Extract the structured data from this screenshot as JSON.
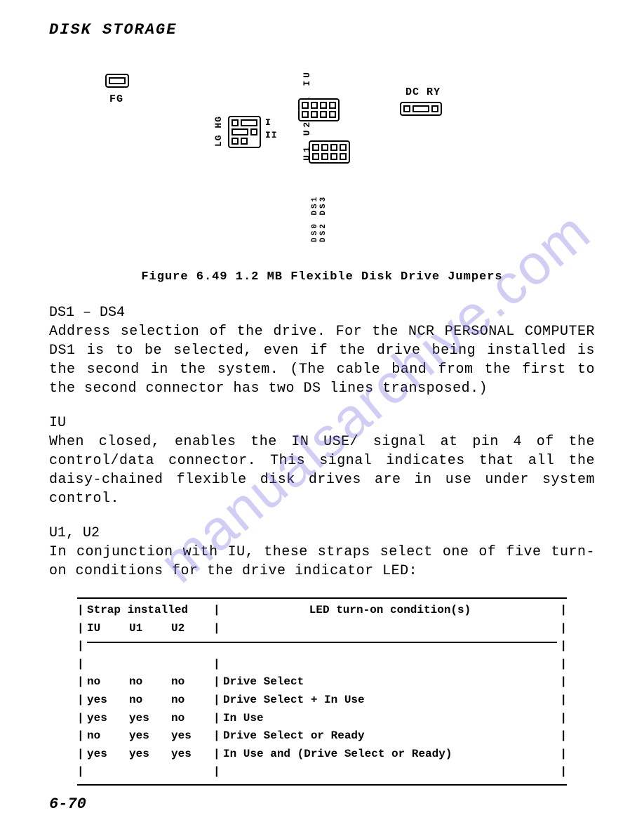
{
  "header": "DISK STORAGE",
  "diagram": {
    "fg_label": "FG",
    "dcry_label": "DC RY",
    "lghg_label": "LG HG",
    "ii_i_top": "I",
    "ii_i_bot": "II",
    "top_labels": "U1 U2 HL IU",
    "ds_labels": "DS0 DS1 DS2 DS3"
  },
  "figure_caption": "Figure 6.49  1.2 MB Flexible Disk Drive Jumpers",
  "sections": [
    {
      "label": "DS1 – DS4",
      "text": "Address selection of the drive. For the NCR PERSONAL COMPUTER DS1 is to be selected, even if the drive being installed is the second in the system. (The cable band from the first to the second connector has two DS lines transposed.)"
    },
    {
      "label": "IU",
      "text": "When  closed, enables the IN USE/ signal at pin 4 of the control/data connector. This signal indicates that all the daisy-chained flexible disk drives are in use under system control."
    },
    {
      "label": "U1, U2",
      "text": "In conjunction with IU, these straps select one of five turn-on conditions for the drive indicator LED:"
    }
  ],
  "table": {
    "header_strap": "Strap installed",
    "header_cond": "LED turn-on condition(s)",
    "sub_iu": "IU",
    "sub_u1": "U1",
    "sub_u2": "U2",
    "rows": [
      {
        "iu": "no",
        "u1": "no",
        "u2": "no",
        "cond": "Drive Select"
      },
      {
        "iu": "yes",
        "u1": "no",
        "u2": "no",
        "cond": "Drive Select + In Use"
      },
      {
        "iu": "yes",
        "u1": "yes",
        "u2": "no",
        "cond": "In Use"
      },
      {
        "iu": "no",
        "u1": "yes",
        "u2": "yes",
        "cond": "Drive Select or Ready"
      },
      {
        "iu": "yes",
        "u1": "yes",
        "u2": "yes",
        "cond": "In Use and (Drive Select or Ready)"
      }
    ]
  },
  "page_number": "6-70",
  "watermark": "manualsarchive.com",
  "colors": {
    "text": "#000000",
    "bg": "#ffffff",
    "watermark": "rgba(122,115,230,0.35)"
  }
}
